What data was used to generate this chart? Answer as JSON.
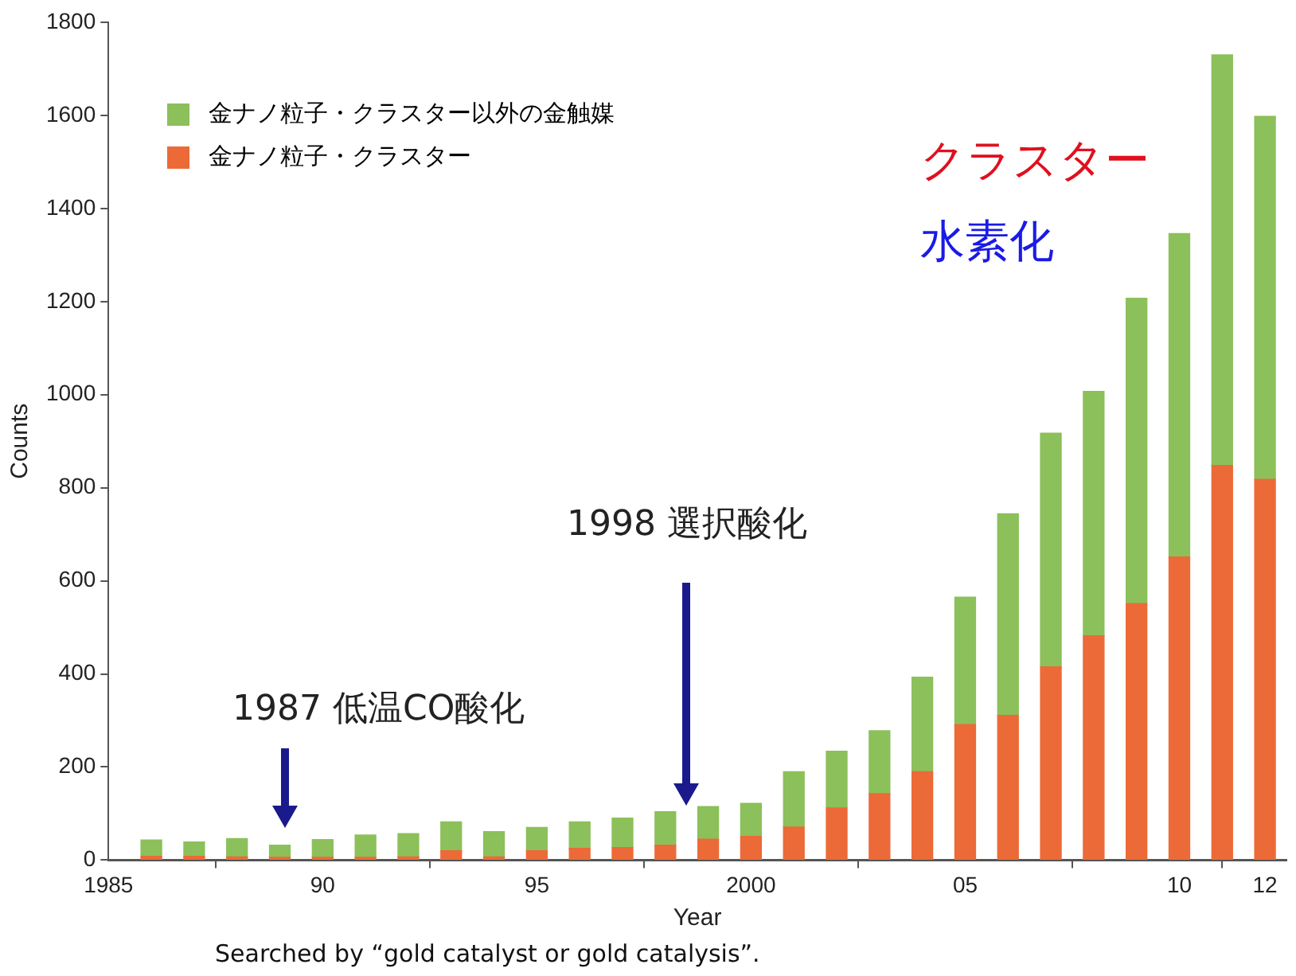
{
  "chart_data": {
    "type": "bar",
    "stacked": true,
    "ylabel": "Counts",
    "xlabel": "Year",
    "x": [
      1986,
      1987,
      1988,
      1989,
      1990,
      1991,
      1992,
      1993,
      1994,
      1995,
      1996,
      1997,
      1998,
      1999,
      2000,
      2001,
      2002,
      2003,
      2004,
      2005,
      2006,
      2007,
      2008,
      2009,
      2010,
      2011,
      2012
    ],
    "series": [
      {
        "name": "金ナノ粒子・クラスター",
        "color": "#ec6a37",
        "values": [
          8,
          8,
          7,
          6,
          6,
          6,
          7,
          20,
          7,
          20,
          25,
          27,
          32,
          45,
          51,
          71,
          112,
          143,
          190,
          291,
          311,
          415,
          482,
          551,
          651,
          848,
          818
        ]
      },
      {
        "name": "金ナノ粒子・クラスター以外の金触媒",
        "color": "#8cc05a",
        "values": [
          35,
          31,
          39,
          26,
          38,
          48,
          50,
          62,
          54,
          50,
          57,
          63,
          72,
          70,
          71,
          119,
          122,
          135,
          203,
          274,
          433,
          502,
          525,
          656,
          695,
          882,
          780
        ]
      }
    ],
    "xlim": [
      1985,
      2012.5
    ],
    "xticks": [
      {
        "value": 1985,
        "label": "1985"
      },
      {
        "value": 1990,
        "label": "90"
      },
      {
        "value": 1995,
        "label": "95"
      },
      {
        "value": 2000,
        "label": "2000"
      },
      {
        "value": 2005,
        "label": "05"
      },
      {
        "value": 2010,
        "label": "10"
      },
      {
        "value": 2012,
        "label": "12"
      }
    ],
    "ylim": [
      0,
      1800
    ],
    "yticks": [
      0,
      200,
      400,
      600,
      800,
      1000,
      1200,
      1400,
      1600,
      1800
    ],
    "grid": false,
    "legend": "top left",
    "annotations": [
      "1987 低温CO酸化",
      "1998 選択酸化",
      "クラスター",
      "水素化",
      "Searched by “gold catalyst or gold catalysis”."
    ]
  }
}
